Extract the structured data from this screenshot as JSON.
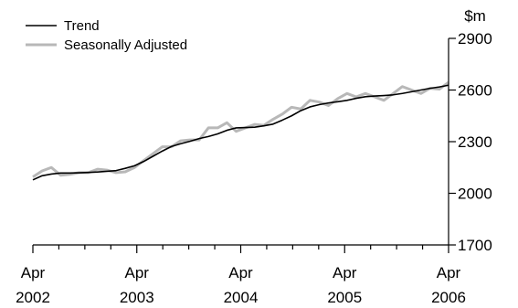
{
  "chart_data": {
    "type": "line",
    "title": "",
    "xlabel": "",
    "ylabel": "$m",
    "ylim": [
      1700,
      2900
    ],
    "yticks": [
      1700,
      2000,
      2300,
      2600,
      2900
    ],
    "xlim": [
      0,
      16
    ],
    "x_tick_positions": [
      0,
      4,
      8,
      12,
      16
    ],
    "x_tick_labels": [
      {
        "month": "Apr",
        "year": "2002"
      },
      {
        "month": "Apr",
        "year": "2003"
      },
      {
        "month": "Apr",
        "year": "2004"
      },
      {
        "month": "Apr",
        "year": "2005"
      },
      {
        "month": "Apr",
        "year": "2006"
      }
    ],
    "legend_position": "top-left",
    "grid": false,
    "series": [
      {
        "name": "Trend",
        "color": "#000000",
        "values": [
          2078,
          2102,
          2112,
          2118,
          2118,
          2119,
          2121,
          2124,
          2128,
          2132,
          2145,
          2160,
          2185,
          2215,
          2245,
          2272,
          2288,
          2302,
          2318,
          2330,
          2345,
          2366,
          2380,
          2382,
          2384,
          2392,
          2402,
          2425,
          2450,
          2480,
          2502,
          2515,
          2525,
          2532,
          2540,
          2552,
          2561,
          2565,
          2568,
          2572,
          2580,
          2590,
          2600,
          2610,
          2618,
          2628
        ]
      },
      {
        "name": "Seasonally Adjusted",
        "color": "#b8b8b8",
        "values": [
          2095,
          2130,
          2150,
          2105,
          2110,
          2120,
          2120,
          2140,
          2135,
          2120,
          2125,
          2150,
          2190,
          2230,
          2270,
          2270,
          2305,
          2310,
          2310,
          2380,
          2380,
          2410,
          2360,
          2380,
          2400,
          2395,
          2430,
          2460,
          2500,
          2490,
          2540,
          2530,
          2510,
          2550,
          2580,
          2560,
          2580,
          2560,
          2540,
          2580,
          2620,
          2600,
          2580,
          2610,
          2605,
          2645
        ]
      }
    ]
  }
}
